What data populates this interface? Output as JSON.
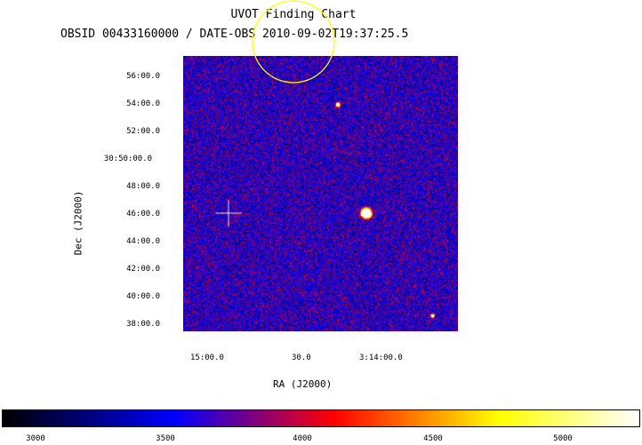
{
  "header": {
    "title": "UVOT Finding Chart",
    "subtitle": "OBSID 00433160000 / DATE-OBS 2010-09-02T19:37:25.5"
  },
  "axes": {
    "ylabel": "Dec (J2000)",
    "xlabel": "RA (J2000)",
    "yticks": [
      "56:00.0",
      "54:00.0",
      "52:00.0",
      "30:50:00.0",
      "48:00.0",
      "46:00.0",
      "44:00.0",
      "42:00.0",
      "40:00.0",
      "38:00.0"
    ],
    "xticks": [
      "15:00.0",
      "30.0",
      "3:14:00.0"
    ]
  },
  "colorbar": {
    "ticks": [
      "3000",
      "3500",
      "4000",
      "4500",
      "5000"
    ],
    "stops": [
      "#000000",
      "#0000ff",
      "#ff0000",
      "#ffff00",
      "#ffffff"
    ]
  },
  "marker": {
    "type": "circle",
    "color": "#ffff00"
  },
  "image": {
    "colormap": "black-blue-red-yellow-white",
    "description_role": "stellar field"
  }
}
